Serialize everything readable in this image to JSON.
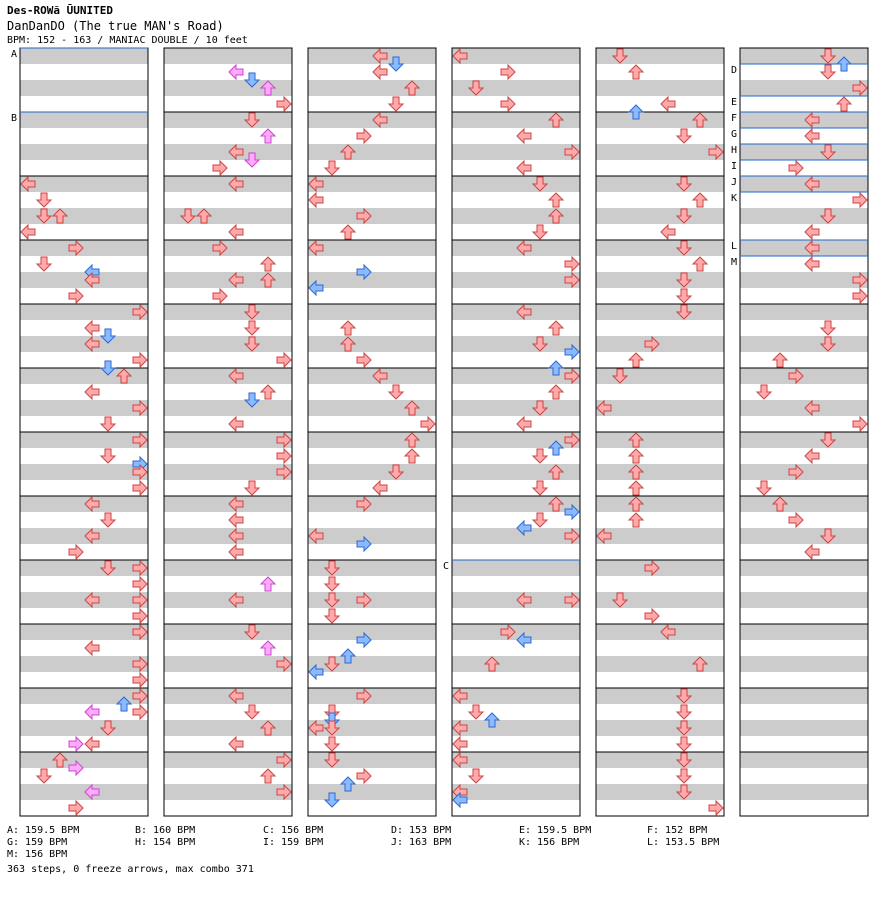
{
  "header": {
    "series": "Des-ROWã ŪUNITED",
    "title": "DanDanDO (The true MAN's Road)",
    "info": "BPM: 152 - 163 / MANIAC DOUBLE / 10 feet"
  },
  "chart_data": {
    "type": "step-chart",
    "columns": 6,
    "measures_per_column": 12,
    "bpm_markers": [
      {
        "label": "A",
        "column": 0,
        "measure": 0.0
      },
      {
        "label": "B",
        "column": 0,
        "measure": 1.0
      },
      {
        "label": "C",
        "column": 3,
        "measure": 8.0
      },
      {
        "label": "D",
        "column": 5,
        "measure": 0.25
      },
      {
        "label": "E",
        "column": 5,
        "measure": 0.75
      },
      {
        "label": "F",
        "column": 5,
        "measure": 1.0
      },
      {
        "label": "G",
        "column": 5,
        "measure": 1.25
      },
      {
        "label": "H",
        "column": 5,
        "measure": 1.5
      },
      {
        "label": "I",
        "column": 5,
        "measure": 1.75
      },
      {
        "label": "J",
        "column": 5,
        "measure": 2.0
      },
      {
        "label": "K",
        "column": 5,
        "measure": 2.25
      },
      {
        "label": "L",
        "column": 5,
        "measure": 3.0
      },
      {
        "label": "M",
        "column": 5,
        "measure": 3.25
      }
    ],
    "notes": [
      [
        [
          2.0,
          0,
          "4"
        ],
        [
          2.25,
          1,
          "4"
        ],
        [
          2.5,
          1,
          "4"
        ],
        [
          2.5,
          2,
          "4"
        ],
        [
          2.75,
          0,
          "4"
        ],
        [
          3.0,
          3,
          "4"
        ],
        [
          3.25,
          1,
          "4"
        ],
        [
          3.375,
          4,
          "4"
        ],
        [
          3.5,
          4,
          "4"
        ],
        [
          3.75,
          3,
          "4"
        ],
        [
          4.0,
          7,
          "4"
        ],
        [
          4.25,
          4,
          "4"
        ],
        [
          4.375,
          5,
          "4"
        ],
        [
          4.5,
          4,
          "4"
        ],
        [
          4.75,
          7,
          "4"
        ],
        [
          4.875,
          5,
          "4"
        ],
        [
          5.0,
          6,
          "4"
        ],
        [
          5.25,
          4,
          "4"
        ],
        [
          5.5,
          7,
          "4"
        ],
        [
          5.75,
          5,
          "4"
        ],
        [
          6.0,
          7,
          "4"
        ],
        [
          6.25,
          5,
          "4"
        ],
        [
          6.375,
          7,
          "4"
        ],
        [
          6.5,
          7,
          "4"
        ],
        [
          6.75,
          7,
          "4"
        ],
        [
          7.0,
          4,
          "4"
        ],
        [
          7.25,
          5,
          "4"
        ],
        [
          7.5,
          4,
          "4"
        ],
        [
          7.75,
          3,
          "4"
        ],
        [
          8.0,
          7,
          "4"
        ],
        [
          8.25,
          7,
          "4"
        ],
        [
          8.5,
          7,
          "4"
        ],
        [
          8.75,
          7,
          "4"
        ],
        [
          8.0,
          5,
          "4"
        ],
        [
          8.5,
          4,
          "4"
        ],
        [
          9.0,
          7,
          "4"
        ],
        [
          9.25,
          4,
          "4"
        ],
        [
          9.5,
          7,
          "4"
        ],
        [
          9.75,
          7,
          "4"
        ],
        [
          10.0,
          7,
          "4"
        ],
        [
          10.125,
          6,
          "4"
        ],
        [
          10.25,
          7,
          "4"
        ],
        [
          10.25,
          4,
          "16"
        ],
        [
          10.5,
          5,
          "4"
        ],
        [
          10.75,
          3,
          "16"
        ],
        [
          10.75,
          4,
          "4"
        ],
        [
          11.0,
          2,
          "4"
        ],
        [
          11.125,
          3,
          "16"
        ],
        [
          11.25,
          1,
          "4"
        ],
        [
          11.5,
          4,
          "16"
        ],
        [
          11.75,
          3,
          "4"
        ]
      ],
      [
        [
          0.25,
          4,
          "16"
        ],
        [
          0.375,
          5,
          "4"
        ],
        [
          0.5,
          6,
          "16"
        ],
        [
          0.75,
          7,
          "4"
        ],
        [
          1.0,
          5,
          "4"
        ],
        [
          1.25,
          6,
          "16"
        ],
        [
          1.5,
          4,
          "4"
        ],
        [
          1.625,
          5,
          "16"
        ],
        [
          1.75,
          3,
          "4"
        ],
        [
          2.0,
          4,
          "4"
        ],
        [
          2.5,
          2,
          "4"
        ],
        [
          2.5,
          1,
          "4"
        ],
        [
          2.75,
          4,
          "4"
        ],
        [
          3.0,
          3,
          "4"
        ],
        [
          3.25,
          6,
          "4"
        ],
        [
          3.5,
          6,
          "4"
        ],
        [
          3.5,
          4,
          "4"
        ],
        [
          3.75,
          3,
          "4"
        ],
        [
          4.0,
          5,
          "4"
        ],
        [
          4.25,
          5,
          "4"
        ],
        [
          4.5,
          5,
          "4"
        ],
        [
          4.75,
          7,
          "4"
        ],
        [
          5.0,
          4,
          "4"
        ],
        [
          5.25,
          6,
          "4"
        ],
        [
          5.375,
          5,
          "4"
        ],
        [
          5.75,
          4,
          "4"
        ],
        [
          6.0,
          7,
          "4"
        ],
        [
          6.25,
          7,
          "4"
        ],
        [
          6.5,
          7,
          "4"
        ],
        [
          6.75,
          5,
          "4"
        ],
        [
          7.0,
          4,
          "4"
        ],
        [
          7.25,
          4,
          "4"
        ],
        [
          7.5,
          4,
          "4"
        ],
        [
          7.75,
          4,
          "4"
        ],
        [
          8.25,
          6,
          "16"
        ],
        [
          8.5,
          4,
          "4"
        ],
        [
          9.0,
          5,
          "4"
        ],
        [
          9.25,
          6,
          "16"
        ],
        [
          9.5,
          7,
          "4"
        ],
        [
          10.0,
          4,
          "4"
        ],
        [
          10.25,
          5,
          "4"
        ],
        [
          10.5,
          6,
          "4"
        ],
        [
          10.75,
          4,
          "4"
        ],
        [
          11.0,
          7,
          "4"
        ],
        [
          11.25,
          6,
          "4"
        ],
        [
          11.5,
          7,
          "4"
        ]
      ],
      [
        [
          0.0,
          4,
          "4"
        ],
        [
          0.125,
          5,
          "4"
        ],
        [
          0.25,
          4,
          "4"
        ],
        [
          0.5,
          6,
          "4"
        ],
        [
          0.75,
          5,
          "4"
        ],
        [
          1.0,
          4,
          "4"
        ],
        [
          1.25,
          3,
          "4"
        ],
        [
          1.5,
          2,
          "4"
        ],
        [
          1.75,
          1,
          "4"
        ],
        [
          2.0,
          0,
          "4"
        ],
        [
          2.25,
          0,
          "4"
        ],
        [
          2.5,
          3,
          "4"
        ],
        [
          2.75,
          2,
          "4"
        ],
        [
          3.0,
          0,
          "4"
        ],
        [
          3.375,
          3,
          "4"
        ],
        [
          3.625,
          0,
          "4"
        ],
        [
          4.25,
          2,
          "4"
        ],
        [
          4.5,
          2,
          "4"
        ],
        [
          4.75,
          3,
          "4"
        ],
        [
          5.0,
          4,
          "4"
        ],
        [
          5.25,
          5,
          "4"
        ],
        [
          5.5,
          6,
          "4"
        ],
        [
          5.75,
          7,
          "4"
        ],
        [
          6.0,
          6,
          "4"
        ],
        [
          6.25,
          6,
          "4"
        ],
        [
          6.5,
          5,
          "4"
        ],
        [
          6.75,
          4,
          "4"
        ],
        [
          7.0,
          3,
          "4"
        ],
        [
          7.5,
          0,
          "4"
        ],
        [
          7.625,
          3,
          "4"
        ],
        [
          8.0,
          1,
          "4"
        ],
        [
          8.25,
          1,
          "4"
        ],
        [
          8.5,
          1,
          "4"
        ],
        [
          8.75,
          1,
          "4"
        ],
        [
          8.5,
          3,
          "4"
        ],
        [
          9.125,
          3,
          "4"
        ],
        [
          9.375,
          2,
          "4"
        ],
        [
          9.5,
          1,
          "4"
        ],
        [
          9.625,
          0,
          "4"
        ],
        [
          10.0,
          3,
          "4"
        ],
        [
          10.25,
          1,
          "4"
        ],
        [
          10.375,
          1,
          "4"
        ],
        [
          10.5,
          1,
          "4"
        ],
        [
          10.75,
          1,
          "4"
        ],
        [
          10.5,
          0,
          "4"
        ],
        [
          11.0,
          1,
          "4"
        ],
        [
          11.25,
          3,
          "4"
        ],
        [
          11.375,
          2,
          "4"
        ],
        [
          11.625,
          1,
          "4"
        ]
      ],
      [
        [
          0.0,
          0,
          "4"
        ],
        [
          0.25,
          3,
          "4"
        ],
        [
          0.5,
          1,
          "4"
        ],
        [
          0.75,
          3,
          "4"
        ],
        [
          1.0,
          6,
          "4"
        ],
        [
          1.25,
          4,
          "4"
        ],
        [
          1.5,
          7,
          "4"
        ],
        [
          1.75,
          4,
          "4"
        ],
        [
          2.0,
          5,
          "4"
        ],
        [
          2.25,
          6,
          "4"
        ],
        [
          2.5,
          6,
          "4"
        ],
        [
          2.75,
          5,
          "4"
        ],
        [
          3.0,
          4,
          "4"
        ],
        [
          3.25,
          7,
          "4"
        ],
        [
          3.5,
          7,
          "4"
        ],
        [
          4.0,
          4,
          "4"
        ],
        [
          4.25,
          6,
          "4"
        ],
        [
          4.5,
          5,
          "4"
        ],
        [
          4.625,
          7,
          "4"
        ],
        [
          4.875,
          6,
          "4"
        ],
        [
          5.0,
          7,
          "4"
        ],
        [
          5.25,
          6,
          "4"
        ],
        [
          5.5,
          5,
          "4"
        ],
        [
          5.75,
          4,
          "4"
        ],
        [
          6.0,
          7,
          "4"
        ],
        [
          6.125,
          6,
          "4"
        ],
        [
          6.25,
          5,
          "4"
        ],
        [
          6.5,
          6,
          "4"
        ],
        [
          6.75,
          5,
          "4"
        ],
        [
          7.0,
          6,
          "4"
        ],
        [
          7.125,
          7,
          "4"
        ],
        [
          7.25,
          5,
          "4"
        ],
        [
          7.375,
          4,
          "4"
        ],
        [
          7.5,
          7,
          "4"
        ],
        [
          8.5,
          4,
          "4"
        ],
        [
          8.5,
          7,
          "4"
        ],
        [
          9.0,
          3,
          "4"
        ],
        [
          9.125,
          4,
          "4"
        ],
        [
          9.5,
          2,
          "4"
        ],
        [
          10.0,
          0,
          "4"
        ],
        [
          10.25,
          1,
          "4"
        ],
        [
          10.375,
          2,
          "4"
        ],
        [
          10.5,
          0,
          "4"
        ],
        [
          10.75,
          0,
          "4"
        ],
        [
          11.0,
          0,
          "4"
        ],
        [
          11.25,
          1,
          "4"
        ],
        [
          11.5,
          0,
          "4"
        ],
        [
          11.625,
          0,
          "4"
        ]
      ],
      [
        [
          0.0,
          1,
          "4"
        ],
        [
          0.25,
          2,
          "4"
        ],
        [
          0.75,
          4,
          "4"
        ],
        [
          0.875,
          2,
          "4"
        ],
        [
          1.0,
          6,
          "4"
        ],
        [
          1.25,
          5,
          "4"
        ],
        [
          1.5,
          7,
          "4"
        ],
        [
          2.0,
          5,
          "4"
        ],
        [
          2.25,
          6,
          "4"
        ],
        [
          2.5,
          5,
          "4"
        ],
        [
          2.75,
          4,
          "4"
        ],
        [
          3.0,
          5,
          "4"
        ],
        [
          3.25,
          6,
          "4"
        ],
        [
          3.5,
          5,
          "4"
        ],
        [
          3.75,
          5,
          "4"
        ],
        [
          4.0,
          5,
          "4"
        ],
        [
          4.5,
          3,
          "4"
        ],
        [
          4.75,
          2,
          "4"
        ],
        [
          5.0,
          1,
          "4"
        ],
        [
          5.5,
          0,
          "4"
        ],
        [
          6.0,
          2,
          "4"
        ],
        [
          6.25,
          2,
          "4"
        ],
        [
          6.5,
          2,
          "4"
        ],
        [
          6.75,
          2,
          "4"
        ],
        [
          7.0,
          2,
          "4"
        ],
        [
          7.25,
          2,
          "4"
        ],
        [
          7.5,
          0,
          "4"
        ],
        [
          8.0,
          3,
          "4"
        ],
        [
          8.5,
          1,
          "4"
        ],
        [
          8.75,
          3,
          "4"
        ],
        [
          9.0,
          4,
          "4"
        ],
        [
          9.5,
          6,
          "4"
        ],
        [
          10.0,
          5,
          "4"
        ],
        [
          10.25,
          5,
          "4"
        ],
        [
          10.5,
          5,
          "4"
        ],
        [
          10.75,
          5,
          "4"
        ],
        [
          11.0,
          5,
          "4"
        ],
        [
          11.25,
          5,
          "4"
        ],
        [
          11.5,
          5,
          "4"
        ],
        [
          11.75,
          7,
          "4"
        ]
      ],
      [
        [
          0.0,
          5,
          "4"
        ],
        [
          0.125,
          6,
          "4"
        ],
        [
          0.25,
          5,
          "4"
        ],
        [
          0.5,
          7,
          "4"
        ],
        [
          0.75,
          6,
          "4"
        ],
        [
          1.0,
          4,
          "4"
        ],
        [
          1.25,
          4,
          "4"
        ],
        [
          1.5,
          5,
          "4"
        ],
        [
          1.75,
          3,
          "4"
        ],
        [
          2.0,
          4,
          "4"
        ],
        [
          2.25,
          7,
          "4"
        ],
        [
          2.5,
          5,
          "4"
        ],
        [
          2.75,
          4,
          "4"
        ],
        [
          3.0,
          4,
          "4"
        ],
        [
          3.25,
          4,
          "4"
        ],
        [
          3.5,
          7,
          "4"
        ],
        [
          3.75,
          7,
          "4"
        ],
        [
          4.25,
          5,
          "4"
        ],
        [
          4.5,
          5,
          "4"
        ],
        [
          4.75,
          2,
          "4"
        ],
        [
          5.0,
          3,
          "4"
        ],
        [
          5.25,
          1,
          "4"
        ],
        [
          5.5,
          4,
          "4"
        ],
        [
          5.75,
          7,
          "4"
        ],
        [
          6.0,
          5,
          "4"
        ],
        [
          6.25,
          4,
          "4"
        ],
        [
          6.5,
          3,
          "4"
        ],
        [
          6.75,
          1,
          "4"
        ],
        [
          7.0,
          2,
          "4"
        ],
        [
          7.25,
          3,
          "4"
        ],
        [
          7.5,
          5,
          "4"
        ],
        [
          7.75,
          4,
          "4"
        ]
      ]
    ]
  },
  "legend": [
    {
      "key": "A",
      "text": "A: 159.5 BPM"
    },
    {
      "key": "B",
      "text": "B: 160 BPM"
    },
    {
      "key": "C",
      "text": "C: 156 BPM"
    },
    {
      "key": "D",
      "text": "D: 153 BPM"
    },
    {
      "key": "E",
      "text": "E: 159.5 BPM"
    },
    {
      "key": "F",
      "text": "F: 152 BPM"
    },
    {
      "key": "G",
      "text": "G: 159 BPM"
    },
    {
      "key": "H",
      "text": "H: 154 BPM"
    },
    {
      "key": "I",
      "text": "I: 159 BPM"
    },
    {
      "key": "J",
      "text": "J: 163 BPM"
    },
    {
      "key": "K",
      "text": "K: 156 BPM"
    },
    {
      "key": "L",
      "text": "L: 153.5 BPM"
    },
    {
      "key": "M",
      "text": "M: 156 BPM"
    }
  ],
  "footer": "363 steps, 0 freeze arrows, max combo 371",
  "colors": {
    "stripe": "#cccccc",
    "border": "#000000",
    "bpm_line": "#2266cc",
    "arrow_4th_fill": "#ffaaaa",
    "arrow_4th_stroke": "#cc4444",
    "arrow_8th_fill": "#88bbff",
    "arrow_8th_stroke": "#3366cc",
    "arrow_16th_fill": "#ffaaff",
    "arrow_16th_stroke": "#cc44cc"
  }
}
